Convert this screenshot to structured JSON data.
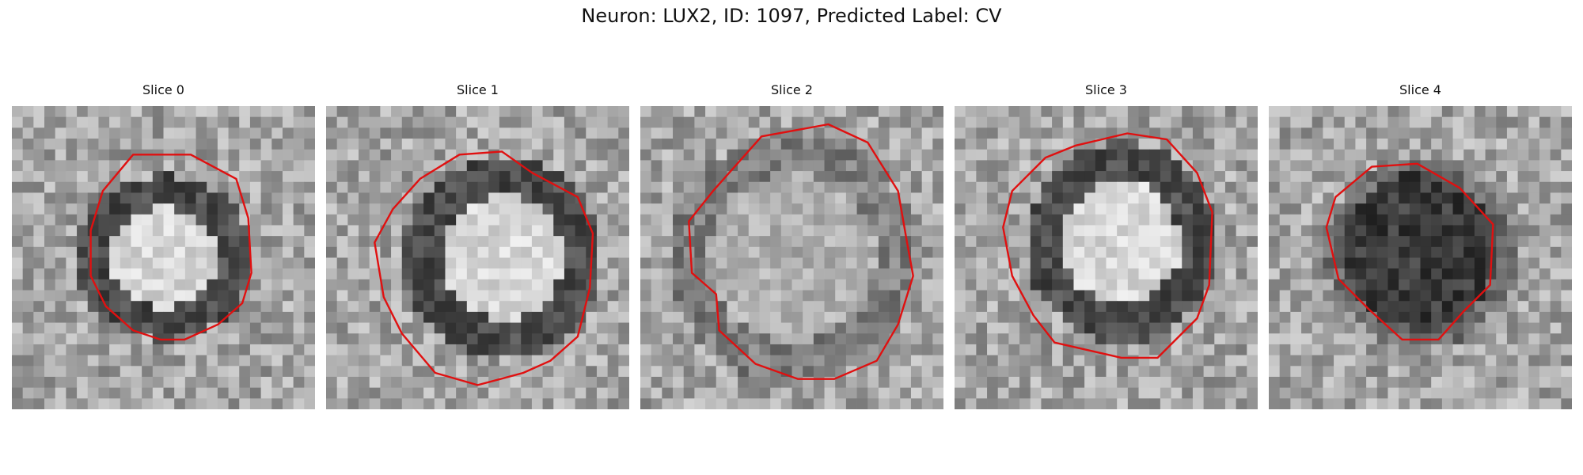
{
  "figure": {
    "title": "Neuron: LUX2, ID: 1097, Predicted Label: CV"
  },
  "panels": [
    {
      "title": "Slice 0",
      "cell": "light",
      "contour": "#e01010"
    },
    {
      "title": "Slice 1",
      "cell": "light",
      "contour": "#e01010"
    },
    {
      "title": "Slice 2",
      "cell": "medium",
      "contour": "#e01010"
    },
    {
      "title": "Slice 3",
      "cell": "light",
      "contour": "#e01010"
    },
    {
      "title": "Slice 4",
      "cell": "dark",
      "contour": "#e01010"
    }
  ]
}
